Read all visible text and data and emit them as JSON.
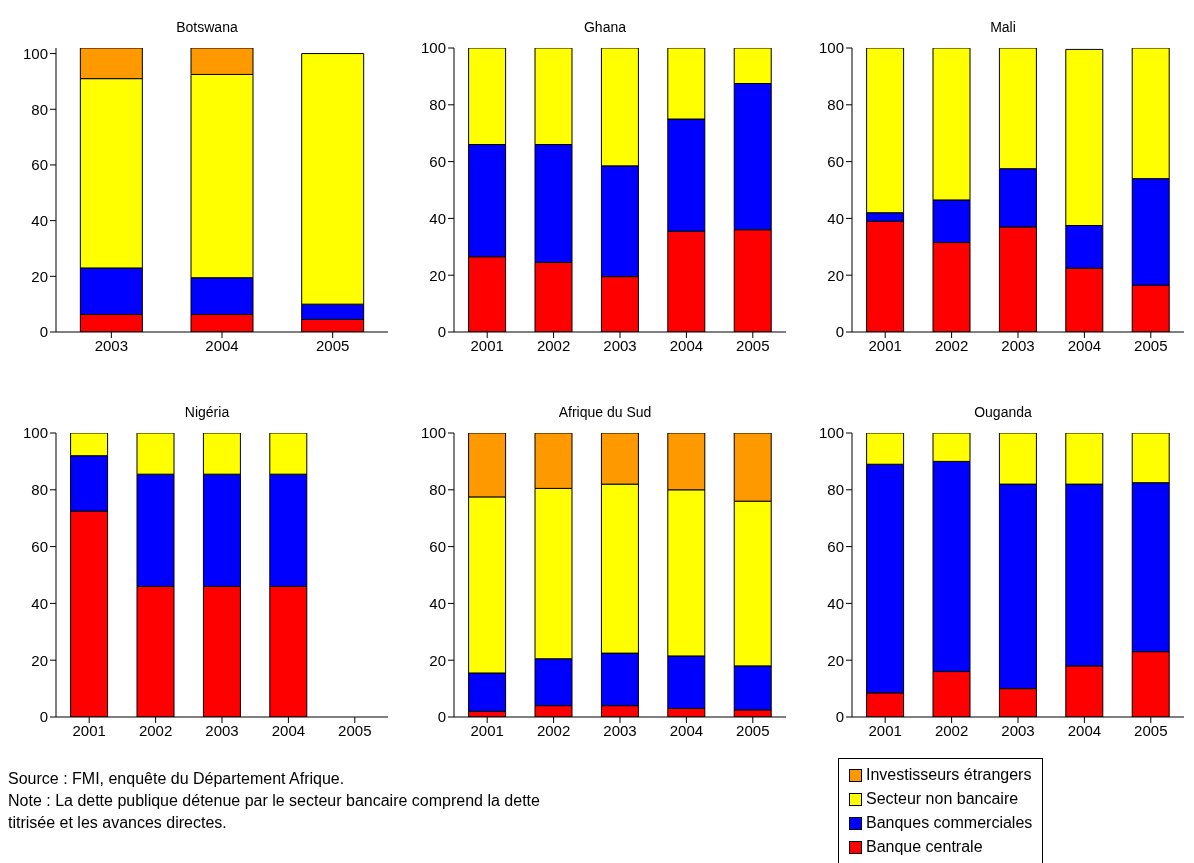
{
  "chart_data": [
    {
      "type": "bar",
      "stacked": true,
      "title": "Botswana",
      "categories": [
        "2003",
        "2004",
        "2005"
      ],
      "ylim": [
        0,
        102
      ],
      "yticks": [
        0,
        20,
        40,
        60,
        80,
        100
      ],
      "series": [
        {
          "color": "#ff0000",
          "values": [
            6.3,
            6.3,
            4.5
          ]
        },
        {
          "color": "#0000ff",
          "values": [
            16.7,
            13.2,
            5.5
          ]
        },
        {
          "color": "#ffff00",
          "values": [
            68,
            73,
            90
          ]
        },
        {
          "color": "#ff9900",
          "values": [
            11,
            9.5,
            null
          ]
        }
      ]
    },
    {
      "type": "bar",
      "stacked": true,
      "title": "Ghana",
      "categories": [
        "2001",
        "2002",
        "2003",
        "2004",
        "2005"
      ],
      "ylim": [
        0,
        100
      ],
      "yticks": [
        0,
        20,
        40,
        60,
        80,
        100
      ],
      "series": [
        {
          "color": "#ff0000",
          "values": [
            26.5,
            24.5,
            19.5,
            35.5,
            36
          ]
        },
        {
          "color": "#0000ff",
          "values": [
            39.5,
            41.5,
            39,
            39.5,
            51.5
          ]
        },
        {
          "color": "#ffff00",
          "values": [
            34,
            34,
            41.5,
            25,
            12.5
          ]
        }
      ]
    },
    {
      "type": "bar",
      "stacked": true,
      "title": "Mali",
      "categories": [
        "2001",
        "2002",
        "2003",
        "2004",
        "2005"
      ],
      "ylim": [
        0,
        100
      ],
      "yticks": [
        0,
        20,
        40,
        60,
        80,
        100
      ],
      "series": [
        {
          "color": "#ff0000",
          "values": [
            39,
            31.5,
            37,
            22.5,
            16.5
          ]
        },
        {
          "color": "#0000ff",
          "values": [
            3,
            15,
            20.5,
            15,
            37.5
          ]
        },
        {
          "color": "#ffff00",
          "values": [
            58,
            53.5,
            42.5,
            62,
            46
          ]
        }
      ]
    },
    {
      "type": "bar",
      "stacked": true,
      "title": "Nigéria",
      "categories": [
        "2001",
        "2002",
        "2003",
        "2004",
        "2005"
      ],
      "ylim": [
        0,
        100
      ],
      "yticks": [
        0,
        20,
        40,
        60,
        80,
        100
      ],
      "annotations": [
        "Source : FMI, enquête du Département Afrique.",
        "Note : La dette publique détenue par le secteur bancaire comprend la dette titrisée et les avances directes."
      ],
      "series": [
        {
          "color": "#ff0000",
          "values": [
            72.5,
            46,
            46,
            46,
            null
          ]
        },
        {
          "color": "#0000ff",
          "values": [
            19.5,
            39.5,
            39.5,
            39.5,
            null
          ]
        },
        {
          "color": "#ffff00",
          "values": [
            8,
            14.5,
            14.5,
            14.5,
            null
          ]
        }
      ]
    },
    {
      "type": "bar",
      "stacked": true,
      "title": "Afrique du Sud",
      "categories": [
        "2001",
        "2002",
        "2003",
        "2004",
        "2005"
      ],
      "ylim": [
        0,
        100
      ],
      "yticks": [
        0,
        20,
        40,
        60,
        80,
        100
      ],
      "series": [
        {
          "color": "#ff0000",
          "values": [
            2,
            4,
            4,
            3,
            2.5
          ]
        },
        {
          "color": "#0000ff",
          "values": [
            13.5,
            16.5,
            18.5,
            18.5,
            15.5
          ]
        },
        {
          "color": "#ffff00",
          "values": [
            62,
            60,
            59.5,
            58.5,
            58
          ]
        },
        {
          "color": "#ff9900",
          "values": [
            22.5,
            19.5,
            18,
            20,
            24
          ]
        }
      ]
    },
    {
      "type": "bar",
      "stacked": true,
      "title": "Ouganda",
      "categories": [
        "2001",
        "2002",
        "2003",
        "2004",
        "2005"
      ],
      "ylim": [
        0,
        100
      ],
      "yticks": [
        0,
        20,
        40,
        60,
        80,
        100
      ],
      "legend": "bottom",
      "series": [
        {
          "name": "Banque centrale",
          "color": "#ff0000",
          "values": [
            8.5,
            16,
            10,
            18,
            23
          ]
        },
        {
          "name": "Banques commerciales",
          "color": "#0000ff",
          "values": [
            80.5,
            74,
            72,
            64,
            59.5
          ]
        },
        {
          "name": "Secteur non bancaire",
          "color": "#ffff00",
          "values": [
            11,
            10,
            18,
            18,
            17.5
          ]
        },
        {
          "name": "Investisseurs étrangers",
          "color": "#ff9900",
          "values": [
            null,
            null,
            null,
            null,
            null
          ]
        }
      ]
    }
  ]
}
